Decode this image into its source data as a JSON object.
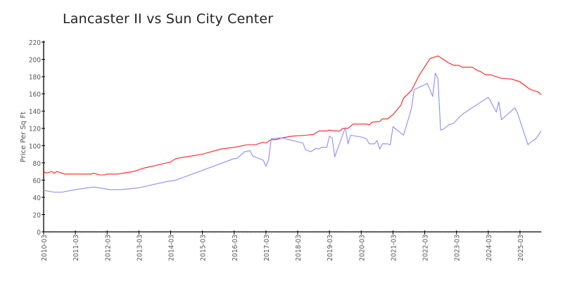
{
  "chart_data": {
    "type": "line",
    "title": "Lancaster II vs Sun City Center",
    "xlabel": "",
    "ylabel": "Price Per Sq Ft",
    "ylim": [
      0,
      220
    ],
    "yticks": [
      0,
      20,
      40,
      60,
      80,
      100,
      120,
      140,
      160,
      180,
      200,
      220
    ],
    "xlim": [
      "2010-03",
      "2025-11"
    ],
    "xticks": [
      "2010-03",
      "2011-03",
      "2012-03",
      "2013-03",
      "2014-03",
      "2015-03",
      "2016-03",
      "2017-03",
      "2018-03",
      "2019-03",
      "2020-03",
      "2021-03",
      "2022-03",
      "2023-03",
      "2024-03",
      "2025-03"
    ],
    "grid": false,
    "series": [
      {
        "color": "#ff2020",
        "points": [
          [
            "2010-03",
            70
          ],
          [
            "2010-04",
            68
          ],
          [
            "2010-06",
            70
          ],
          [
            "2010-07",
            68
          ],
          [
            "2010-08",
            70
          ],
          [
            "2010-11",
            67
          ],
          [
            "2011-09",
            67
          ],
          [
            "2011-10",
            68
          ],
          [
            "2011-12",
            66
          ],
          [
            "2012-02",
            66
          ],
          [
            "2012-03",
            67
          ],
          [
            "2012-07",
            67
          ],
          [
            "2013-01",
            70
          ],
          [
            "2013-05",
            74
          ],
          [
            "2014-03",
            81
          ],
          [
            "2014-05",
            85
          ],
          [
            "2014-09",
            87
          ],
          [
            "2015-03",
            90
          ],
          [
            "2015-10",
            96
          ],
          [
            "2016-03",
            98
          ],
          [
            "2016-08",
            101
          ],
          [
            "2016-11",
            101
          ],
          [
            "2017-02",
            104
          ],
          [
            "2017-03",
            103
          ],
          [
            "2017-05",
            107
          ],
          [
            "2017-07",
            107
          ],
          [
            "2017-09",
            109
          ],
          [
            "2018-01",
            111
          ],
          [
            "2018-06",
            112
          ],
          [
            "2018-09",
            113
          ],
          [
            "2018-11",
            117
          ],
          [
            "2019-02",
            117
          ],
          [
            "2019-03",
            118
          ],
          [
            "2019-05",
            117
          ],
          [
            "2019-07",
            117
          ],
          [
            "2019-08",
            120
          ],
          [
            "2019-10",
            120
          ],
          [
            "2019-12",
            125
          ],
          [
            "2020-05",
            125
          ],
          [
            "2020-06",
            124
          ],
          [
            "2020-07",
            127
          ],
          [
            "2020-10",
            128
          ],
          [
            "2020-11",
            131
          ],
          [
            "2021-01",
            131
          ],
          [
            "2021-03",
            136
          ],
          [
            "2021-06",
            147
          ],
          [
            "2021-07",
            155
          ],
          [
            "2021-10",
            164
          ],
          [
            "2022-01",
            182
          ],
          [
            "2022-05",
            201
          ],
          [
            "2022-08",
            204
          ],
          [
            "2022-10",
            200
          ],
          [
            "2022-12",
            196
          ],
          [
            "2023-02",
            193
          ],
          [
            "2023-04",
            193
          ],
          [
            "2023-05",
            191
          ],
          [
            "2023-09",
            191
          ],
          [
            "2023-11",
            187
          ],
          [
            "2023-12",
            186
          ],
          [
            "2024-02",
            182
          ],
          [
            "2024-04",
            182
          ],
          [
            "2024-08",
            178
          ],
          [
            "2024-09",
            178
          ],
          [
            "2024-12",
            177
          ],
          [
            "2025-02",
            175
          ],
          [
            "2025-03",
            174
          ],
          [
            "2025-06",
            167
          ],
          [
            "2025-07",
            165
          ],
          [
            "2025-10",
            162
          ],
          [
            "2025-11",
            159
          ]
        ]
      },
      {
        "color": "#8c8cff",
        "points": [
          [
            "2010-03",
            48
          ],
          [
            "2010-07",
            46
          ],
          [
            "2010-10",
            46
          ],
          [
            "2011-03",
            49
          ],
          [
            "2011-10",
            52
          ],
          [
            "2012-02",
            50
          ],
          [
            "2012-04",
            49
          ],
          [
            "2012-08",
            49
          ],
          [
            "2013-03",
            51
          ],
          [
            "2014-01",
            58
          ],
          [
            "2014-05",
            60
          ],
          [
            "2016-03",
            85
          ],
          [
            "2016-04",
            85
          ],
          [
            "2016-07",
            93
          ],
          [
            "2016-09",
            94
          ],
          [
            "2016-10",
            88
          ],
          [
            "2017-02",
            83
          ],
          [
            "2017-03",
            76
          ],
          [
            "2017-04",
            84
          ],
          [
            "2017-05",
            108
          ],
          [
            "2017-09",
            109
          ],
          [
            "2018-05",
            103
          ],
          [
            "2018-06",
            95
          ],
          [
            "2018-08",
            93
          ],
          [
            "2018-10",
            97
          ],
          [
            "2018-11",
            96
          ],
          [
            "2018-12",
            98
          ],
          [
            "2019-02",
            98
          ],
          [
            "2019-03",
            111
          ],
          [
            "2019-04",
            109
          ],
          [
            "2019-05",
            87
          ],
          [
            "2019-09",
            121
          ],
          [
            "2019-10",
            102
          ],
          [
            "2019-11",
            112
          ],
          [
            "2020-03",
            110
          ],
          [
            "2020-05",
            108
          ],
          [
            "2020-06",
            102
          ],
          [
            "2020-08",
            102
          ],
          [
            "2020-09",
            106
          ],
          [
            "2020-10",
            96
          ],
          [
            "2020-11",
            102
          ],
          [
            "2021-01",
            102
          ],
          [
            "2021-02",
            101
          ],
          [
            "2021-03",
            122
          ],
          [
            "2021-07",
            112
          ],
          [
            "2021-10",
            143
          ],
          [
            "2021-11",
            165
          ],
          [
            "2022-04",
            172
          ],
          [
            "2022-06",
            157
          ],
          [
            "2022-07",
            184
          ],
          [
            "2022-08",
            178
          ],
          [
            "2022-09",
            118
          ],
          [
            "2022-10",
            119
          ],
          [
            "2022-12",
            124
          ],
          [
            "2023-02",
            126
          ],
          [
            "2023-04",
            133
          ],
          [
            "2023-06",
            138
          ],
          [
            "2023-11",
            148
          ],
          [
            "2023-12",
            150
          ],
          [
            "2024-03",
            156
          ],
          [
            "2024-04",
            151
          ],
          [
            "2024-06",
            139
          ],
          [
            "2024-07",
            151
          ],
          [
            "2024-08",
            130
          ],
          [
            "2024-09",
            133
          ],
          [
            "2024-12",
            141
          ],
          [
            "2025-01",
            144
          ],
          [
            "2025-02",
            138
          ],
          [
            "2025-06",
            101
          ],
          [
            "2025-07",
            104
          ],
          [
            "2025-09",
            108
          ],
          [
            "2025-11",
            117
          ]
        ]
      }
    ]
  }
}
